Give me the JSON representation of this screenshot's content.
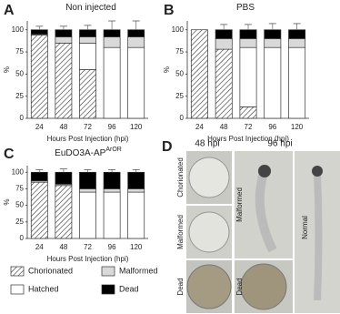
{
  "chart_data": [
    {
      "type": "bar",
      "stacked": true,
      "panel_label": "A",
      "title": "Non injected",
      "xlabel": "Hours Post Injection (hpi)",
      "ylabel": "%",
      "categories": [
        "24",
        "48",
        "72",
        "96",
        "120"
      ],
      "ylim": [
        0,
        110
      ],
      "yticks": [
        0,
        25,
        50,
        75,
        100
      ],
      "series": [
        {
          "name": "Chorionated",
          "color": "#ffffff",
          "hatch": true,
          "values": [
            94,
            85,
            55,
            0,
            0
          ],
          "errors": [
            null,
            3,
            8,
            null,
            null
          ]
        },
        {
          "name": "Hatched",
          "color": "#ffffff",
          "values": [
            0,
            0,
            30,
            80,
            80
          ]
        },
        {
          "name": "Malformed",
          "color": "#d9d9d9",
          "values": [
            1,
            7,
            7,
            12,
            12
          ]
        },
        {
          "name": "Dead",
          "color": "#000000",
          "values": [
            5,
            8,
            8,
            8,
            8
          ],
          "errors": [
            4,
            4,
            5,
            10,
            10
          ]
        }
      ]
    },
    {
      "type": "bar",
      "stacked": true,
      "panel_label": "B",
      "title": "PBS",
      "xlabel": "Hours Post Injection (hpi)",
      "ylabel": "%",
      "categories": [
        "24",
        "48",
        "72",
        "96",
        "120"
      ],
      "ylim": [
        0,
        110
      ],
      "yticks": [
        0,
        25,
        50,
        75,
        100
      ],
      "series": [
        {
          "name": "Chorionated",
          "color": "#ffffff",
          "hatch": true,
          "values": [
            100,
            78,
            13,
            0,
            0
          ],
          "errors": [
            null,
            4,
            7,
            null,
            null
          ]
        },
        {
          "name": "Hatched",
          "color": "#ffffff",
          "values": [
            0,
            0,
            67,
            80,
            80
          ]
        },
        {
          "name": "Malformed",
          "color": "#d9d9d9",
          "values": [
            0,
            12,
            10,
            10,
            10
          ]
        },
        {
          "name": "Dead",
          "color": "#000000",
          "values": [
            0,
            10,
            10,
            10,
            10
          ],
          "errors": [
            null,
            6,
            6,
            7,
            7
          ]
        }
      ]
    },
    {
      "type": "bar",
      "stacked": true,
      "panel_label": "C",
      "title": "EuDO3A-AP",
      "title_superscript": "ArOR",
      "xlabel": "Hours Post Injection (hpi)",
      "ylabel": "%",
      "categories": [
        "24",
        "48",
        "72",
        "96",
        "120"
      ],
      "ylim": [
        0,
        110
      ],
      "yticks": [
        0,
        25,
        50,
        75,
        100
      ],
      "series": [
        {
          "name": "Chorionated",
          "color": "#ffffff",
          "hatch": true,
          "values": [
            85,
            80,
            0,
            0,
            0
          ],
          "errors": [
            5,
            6,
            null,
            null,
            null
          ]
        },
        {
          "name": "Hatched",
          "color": "#ffffff",
          "values": [
            0,
            0,
            70,
            70,
            70
          ]
        },
        {
          "name": "Malformed",
          "color": "#d9d9d9",
          "values": [
            2,
            2,
            5,
            5,
            5
          ]
        },
        {
          "name": "Dead",
          "color": "#000000",
          "values": [
            13,
            18,
            25,
            25,
            25
          ],
          "errors": [
            4,
            5,
            4,
            4,
            4
          ]
        }
      ]
    }
  ],
  "panel_d": {
    "label": "D",
    "columns": [
      "48 hpi",
      "96 hpi"
    ],
    "labels": [
      "Chorionated",
      "Malformed",
      "Dead",
      "Malformed",
      "Dead",
      "Normal"
    ]
  }
}
